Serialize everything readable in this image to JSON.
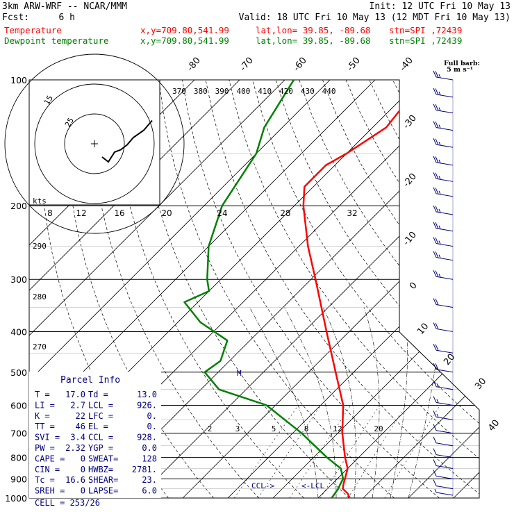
{
  "header": {
    "left_line1": "3km ARW-WRF -- NCAR/MMM",
    "right_line1": "Init: 12 UTC Fri 10 May 13",
    "fcst_label": "Fcst:",
    "fcst_value": "6 h",
    "valid_text": "Valid: 18 UTC Fri 10 May 13 (12 MDT Fri 10 May 13)",
    "temperature_label": "Temperature",
    "dewpoint_label": "Dewpoint temperature",
    "xy_text": "x,y=709.80,541.99",
    "latlon_text": "lat,lon= 39.85, -89.68",
    "stn_text": "stn=SPI ,72439",
    "full_barb_line1": "Full barb:",
    "full_barb_line2": "5 m s⁻¹"
  },
  "colors": {
    "temperature": "#ff0000",
    "dewpoint": "#008000",
    "text_blue": "#000080",
    "barb": "#000080",
    "axes": "#000000"
  },
  "parcel_info": {
    "title": "Parcel Info",
    "rows": [
      {
        "l1": "T  =",
        "v1": "17.0",
        "l2": "Td =",
        "v2": "13.0"
      },
      {
        "l1": "LI =",
        "v1": "2.7",
        "l2": "LCL =",
        "v2": "926."
      },
      {
        "l1": "K  =",
        "v1": "22",
        "l2": "LFC =",
        "v2": "0."
      },
      {
        "l1": "TT =",
        "v1": "46",
        "l2": "EL  =",
        "v2": "0."
      },
      {
        "l1": "SVI =",
        "v1": "3.4",
        "l2": "CCL =",
        "v2": "928."
      },
      {
        "l1": "PW =",
        "v1": "2.32",
        "l2": "YGP =",
        "v2": "0.0"
      },
      {
        "l1": "CAPE =",
        "v1": "0",
        "l2": "SWEAT=",
        "v2": "128"
      },
      {
        "l1": "CIN =",
        "v1": "0",
        "l2": "HWBZ=",
        "v2": "2781."
      },
      {
        "l1": "Tc =",
        "v1": "16.6",
        "l2": "SHEAR=",
        "v2": "23."
      },
      {
        "l1": "SREH =",
        "v1": "0",
        "l2": "LAPSE=",
        "v2": "6.0"
      }
    ],
    "cell_label": "CELL = 253/26"
  },
  "level_markers": {
    "ccl": "CCL->",
    "lcl": "<-LCL",
    "m": "M"
  },
  "hodograph": {
    "units_label": "kts",
    "ring_labels": [
      "15",
      "25"
    ],
    "speed_ticks": [
      "8",
      "12",
      "16",
      "20",
      "24",
      "28",
      "32"
    ]
  },
  "theta_labels": [
    "370",
    "380",
    "390",
    "400",
    "410",
    "420",
    "430",
    "440"
  ],
  "theta_side_labels": [
    "290",
    "280",
    "270"
  ],
  "mixing_ratio_labels": [
    "2",
    "3",
    "5",
    "8",
    "12",
    "20"
  ],
  "chart_data": {
    "type": "line",
    "title": "",
    "ylabel": "",
    "xlabel": "",
    "y_scale": "log-pressure (hPa, inverted)",
    "ylim": [
      1000,
      100
    ],
    "xlim": [
      -40,
      50
    ],
    "pressure_ticks": [
      "100",
      "200",
      "300",
      "400",
      "500",
      "600",
      "700",
      "800",
      "900",
      "1000"
    ],
    "temperature_ticks": [
      "-80",
      "-70",
      "-60",
      "-50",
      "-40",
      "-30",
      "-20",
      "-10",
      "0",
      "10",
      "20",
      "30",
      "40"
    ],
    "series": [
      {
        "name": "Temperature",
        "color": "#ff0000",
        "points": [
          {
            "p": 1000,
            "t": 17.0
          },
          {
            "p": 975,
            "t": 15.5
          },
          {
            "p": 950,
            "t": 13.4
          },
          {
            "p": 925,
            "t": 12.5
          },
          {
            "p": 900,
            "t": 11.7
          },
          {
            "p": 850,
            "t": 10.0
          },
          {
            "p": 800,
            "t": 7.0
          },
          {
            "p": 700,
            "t": 1.0
          },
          {
            "p": 600,
            "t": -5.0
          },
          {
            "p": 500,
            "t": -14.0
          },
          {
            "p": 400,
            "t": -25.0
          },
          {
            "p": 300,
            "t": -39.0
          },
          {
            "p": 250,
            "t": -48.0
          },
          {
            "p": 200,
            "t": -58.0
          },
          {
            "p": 180,
            "t": -62.0
          },
          {
            "p": 160,
            "t": -62.0
          },
          {
            "p": 150,
            "t": -60.0
          },
          {
            "p": 130,
            "t": -57.0
          },
          {
            "p": 115,
            "t": -58.0
          },
          {
            "p": 100,
            "t": -60.0
          }
        ]
      },
      {
        "name": "Dewpoint temperature",
        "color": "#008000",
        "points": [
          {
            "p": 1000,
            "t": 13.0
          },
          {
            "p": 950,
            "t": 12.4
          },
          {
            "p": 925,
            "t": 11.8
          },
          {
            "p": 900,
            "t": 11.3
          },
          {
            "p": 850,
            "t": 8.5
          },
          {
            "p": 800,
            "t": 3.0
          },
          {
            "p": 700,
            "t": -8.0
          },
          {
            "p": 600,
            "t": -22.0
          },
          {
            "p": 550,
            "t": -36.0
          },
          {
            "p": 500,
            "t": -43.0
          },
          {
            "p": 470,
            "t": -42.0
          },
          {
            "p": 420,
            "t": -45.0
          },
          {
            "p": 380,
            "t": -55.0
          },
          {
            "p": 340,
            "t": -63.0
          },
          {
            "p": 320,
            "t": -60.0
          },
          {
            "p": 300,
            "t": -63.0
          },
          {
            "p": 250,
            "t": -70.0
          },
          {
            "p": 200,
            "t": -76.0
          },
          {
            "p": 150,
            "t": -80.0
          },
          {
            "p": 130,
            "t": -84.0
          },
          {
            "p": 100,
            "t": -88.0
          }
        ]
      }
    ],
    "wind_barbs": [
      {
        "p": 985,
        "dir": 190,
        "spd": 5
      },
      {
        "p": 950,
        "dir": 200,
        "spd": 10
      },
      {
        "p": 900,
        "dir": 215,
        "spd": 12
      },
      {
        "p": 850,
        "dir": 230,
        "spd": 12
      },
      {
        "p": 800,
        "dir": 240,
        "spd": 12
      },
      {
        "p": 750,
        "dir": 240,
        "spd": 12
      },
      {
        "p": 700,
        "dir": 235,
        "spd": 12
      },
      {
        "p": 650,
        "dir": 240,
        "spd": 15
      },
      {
        "p": 600,
        "dir": 250,
        "spd": 15
      },
      {
        "p": 550,
        "dir": 250,
        "spd": 15
      },
      {
        "p": 500,
        "dir": 260,
        "spd": 20
      },
      {
        "p": 450,
        "dir": 260,
        "spd": 20
      },
      {
        "p": 400,
        "dir": 265,
        "spd": 20
      },
      {
        "p": 350,
        "dir": 265,
        "spd": 20
      },
      {
        "p": 300,
        "dir": 270,
        "spd": 25
      },
      {
        "p": 270,
        "dir": 270,
        "spd": 25
      },
      {
        "p": 250,
        "dir": 270,
        "spd": 25
      },
      {
        "p": 230,
        "dir": 270,
        "spd": 25
      },
      {
        "p": 210,
        "dir": 270,
        "spd": 25
      },
      {
        "p": 190,
        "dir": 270,
        "spd": 25
      },
      {
        "p": 175,
        "dir": 270,
        "spd": 25
      },
      {
        "p": 160,
        "dir": 270,
        "spd": 25
      },
      {
        "p": 145,
        "dir": 270,
        "spd": 25
      },
      {
        "p": 132,
        "dir": 270,
        "spd": 25
      },
      {
        "p": 120,
        "dir": 270,
        "spd": 25
      },
      {
        "p": 110,
        "dir": 270,
        "spd": 25
      },
      {
        "p": 100,
        "dir": 270,
        "spd": 25
      }
    ],
    "hodograph_points": [
      {
        "u": 0,
        "v": 0
      },
      {
        "u": 3,
        "v": -2
      },
      {
        "u": 6,
        "v": 2
      },
      {
        "u": 9,
        "v": 3
      },
      {
        "u": 12,
        "v": 5
      },
      {
        "u": 15,
        "v": 8
      },
      {
        "u": 20,
        "v": 11
      },
      {
        "u": 24,
        "v": 15
      }
    ]
  }
}
